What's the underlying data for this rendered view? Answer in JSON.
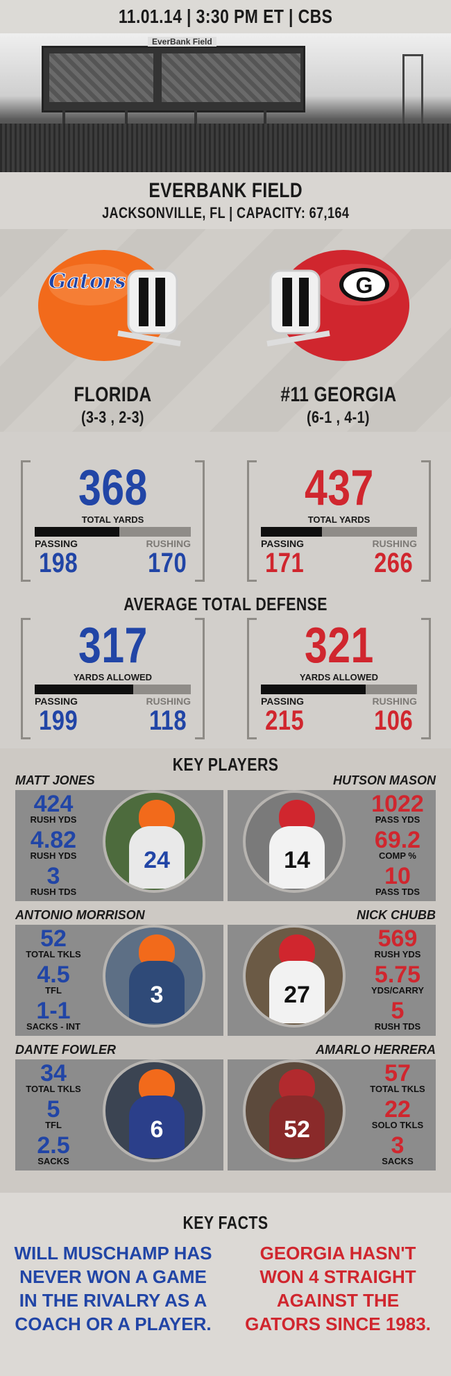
{
  "game": {
    "info": "11.01.14 | 3:30 PM ET | CBS"
  },
  "venue": {
    "name": "EVERBANK FIELD",
    "location": "JACKSONVILLE, FL | CAPACITY: 67,164",
    "sign": "EverBank Field"
  },
  "teams": {
    "home": {
      "name": "FLORIDA",
      "record": "(3-3 , 2-3)",
      "helmet_logo": "Gators"
    },
    "away": {
      "name": "#11 GEORGIA",
      "record": "(6-1 , 4-1)",
      "helmet_logo": "G"
    }
  },
  "offense": {
    "florida": {
      "total": "368",
      "label": "TOTAL YARDS",
      "passing_label": "PASSING",
      "rushing_label": "RUSHING",
      "passing": "198",
      "rushing": "170",
      "passing_share": 0.54
    },
    "georgia": {
      "total": "437",
      "label": "TOTAL YARDS",
      "passing_label": "PASSING",
      "rushing_label": "RUSHING",
      "passing": "171",
      "rushing": "266",
      "passing_share": 0.39
    }
  },
  "defense": {
    "title": "AVERAGE TOTAL DEFENSE",
    "florida": {
      "total": "317",
      "label": "YARDS ALLOWED",
      "passing_label": "PASSING",
      "rushing_label": "RUSHING",
      "passing": "199",
      "rushing": "118",
      "passing_share": 0.63
    },
    "georgia": {
      "total": "321",
      "label": "YARDS ALLOWED",
      "passing_label": "PASSING",
      "rushing_label": "RUSHING",
      "passing": "215",
      "rushing": "106",
      "passing_share": 0.67
    }
  },
  "key_players": {
    "title": "KEY PLAYERS",
    "florida": [
      {
        "name": "MATT JONES",
        "jersey": "24",
        "stats": [
          {
            "v": "424",
            "l": "RUSH YDS"
          },
          {
            "v": "4.82",
            "l": "RUSH YDS"
          },
          {
            "v": "3",
            "l": "RUSH TDS"
          }
        ]
      },
      {
        "name": "ANTONIO MORRISON",
        "jersey": "3",
        "stats": [
          {
            "v": "52",
            "l": "TOTAL TKLS"
          },
          {
            "v": "4.5",
            "l": "TFL"
          },
          {
            "v": "1-1",
            "l": "SACKS - INT"
          }
        ]
      },
      {
        "name": "DANTE FOWLER",
        "jersey": "6",
        "stats": [
          {
            "v": "34",
            "l": "TOTAL TKLS"
          },
          {
            "v": "5",
            "l": "TFL"
          },
          {
            "v": "2.5",
            "l": "SACKS"
          }
        ]
      }
    ],
    "georgia": [
      {
        "name": "HUTSON MASON",
        "jersey": "14",
        "stats": [
          {
            "v": "1022",
            "l": "PASS YDS"
          },
          {
            "v": "69.2",
            "l": "COMP %"
          },
          {
            "v": "10",
            "l": "PASS TDS"
          }
        ]
      },
      {
        "name": "NICK CHUBB",
        "jersey": "27",
        "stats": [
          {
            "v": "569",
            "l": "RUSH YDS"
          },
          {
            "v": "5.75",
            "l": "YDS/CARRY"
          },
          {
            "v": "5",
            "l": "RUSH TDS"
          }
        ]
      },
      {
        "name": "AMARLO HERRERA",
        "jersey": "52",
        "stats": [
          {
            "v": "57",
            "l": "TOTAL TKLS"
          },
          {
            "v": "22",
            "l": "SOLO TKLS"
          },
          {
            "v": "3",
            "l": "SACKS"
          }
        ]
      }
    ]
  },
  "key_facts": {
    "title": "KEY FACTS",
    "florida": "WILL MUSCHAMP HAS NEVER WON A GAME IN THE RIVALRY AS A COACH OR A PLAYER.",
    "georgia": "GEORGIA HASN'T WON 4 STRAIGHT AGAINST THE GATORS SINCE 1983."
  },
  "colors": {
    "florida_blue": "#2145a6",
    "georgia_red": "#d0262e",
    "florida_orange": "#f26a1b"
  }
}
